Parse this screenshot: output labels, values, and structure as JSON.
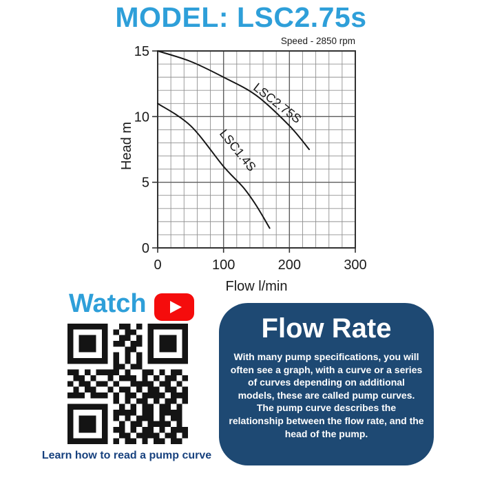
{
  "colors": {
    "accent_blue": "#2E9FD9",
    "youtube_red": "#F50C0C",
    "navy": "#1E4973",
    "link_navy": "#17417E",
    "grid_minor": "#909090",
    "grid_major": "#5E5E5E",
    "axis_frame": "#303030",
    "curve": "#161616",
    "chart_text": "#1A1A1A",
    "qr_black": "#141414"
  },
  "header": {
    "title": "MODEL: LSC2.75s"
  },
  "chart_data": {
    "type": "line",
    "annotation": "Speed - 2850 rpm",
    "xlabel": "Flow l/min",
    "ylabel": "Head m",
    "xlim": [
      0,
      300
    ],
    "ylim": [
      0,
      15
    ],
    "x_ticks": [
      0,
      100,
      200,
      300
    ],
    "y_ticks": [
      0,
      5,
      10,
      15
    ],
    "x_minor_step": 20,
    "y_minor_step": 1,
    "grid": true,
    "legend_position": "on-curve",
    "series": [
      {
        "name": "LSC2.75S",
        "points": [
          [
            0,
            15
          ],
          [
            50,
            14.2
          ],
          [
            100,
            13
          ],
          [
            150,
            11.6
          ],
          [
            200,
            9.3
          ],
          [
            230,
            7.5
          ]
        ],
        "label_at": [
          144,
          12.1
        ],
        "label_angle": 38
      },
      {
        "name": "LSC1.4S",
        "points": [
          [
            0,
            11
          ],
          [
            50,
            9.3
          ],
          [
            100,
            6.2
          ],
          [
            130,
            4.6
          ],
          [
            150,
            3.2
          ],
          [
            170,
            1.5
          ]
        ],
        "label_at": [
          93,
          8.7
        ],
        "label_angle": 51
      }
    ]
  },
  "watch": {
    "label": "Watch",
    "youtube_icon": "youtube-play-icon",
    "caption": "Learn how to read a pump curve"
  },
  "qr": {
    "size": 21,
    "matrix": [
      "111111100110101111111",
      "100000101011001000001",
      "101110100110101011101",
      "101110101101101011101",
      "101110100011001011101",
      "100000101010101000001",
      "111111101010101111111",
      "000000001101100000000",
      "110101111010011010110",
      "011010010111010101101",
      "101101101001111011010",
      "010110010110101101101",
      "111011101011011110111",
      "000000001010110101101",
      "111111100101011011010",
      "100000101111011011110",
      "101110101010111010110",
      "101110100101101111010",
      "101110101101011010111",
      "100000100110111101101",
      "111111101011010110110"
    ]
  },
  "card": {
    "title": "Flow Rate",
    "body": "With many pump specifications, you will often see a graph, with a curve or a series of curves depending on additional models, these are called pump curves. The pump curve describes the relationship between the flow rate, and the head of the pump."
  }
}
